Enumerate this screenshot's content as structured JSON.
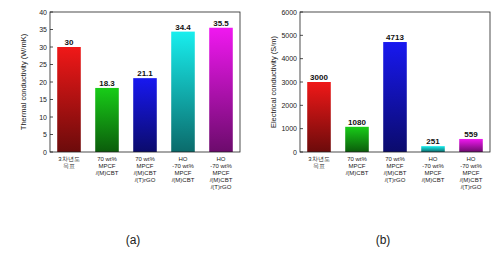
{
  "chart_data": [
    {
      "type": "bar",
      "caption": "(a)",
      "y_label": "Thermal conductivity (W/mK)",
      "categories": [
        "3차년도\n목표",
        "70 wt%\nMPCF\n/(M)CBT",
        "70 wt%\nMPCF\n/(M)CBT\n/(T)rGO",
        "HO\n-70 wt%\nMPCF\n/(M)CBT",
        "HO\n-70 wt%\nMPCF\n/(M)CBT\n/(T)rGO"
      ],
      "values": [
        30,
        18.3,
        21.1,
        34.4,
        35.5
      ],
      "colors": [
        "#f01818",
        "#18cc18",
        "#1818f0",
        "#18eeee",
        "#f018f0"
      ],
      "ylim": [
        0,
        40
      ],
      "yticks": [
        0,
        5,
        10,
        15,
        20,
        25,
        30,
        35,
        40
      ],
      "data_labels": true
    },
    {
      "type": "bar",
      "caption": "(b)",
      "y_label": "Electrical conductivity (S/m)",
      "categories": [
        "3차년도\n목표",
        "70 wt%\nMPCF\n/(M)CBT",
        "70 wt%\nMPCF\n/(M)CBT\n/(T)rGO",
        "HO\n-70 wt%\nMPCF\n/(M)CBT",
        "HO\n-70 wt%\nMPCF\n/(M)CBT\n/(T)rGO"
      ],
      "values": [
        3000,
        1080,
        4713,
        251,
        559
      ],
      "colors": [
        "#f01818",
        "#18cc18",
        "#1818f0",
        "#18eeee",
        "#f018f0"
      ],
      "ylim": [
        0,
        6000
      ],
      "yticks": [
        0,
        1000,
        2000,
        3000,
        4000,
        5000,
        6000
      ],
      "data_labels": true
    }
  ]
}
